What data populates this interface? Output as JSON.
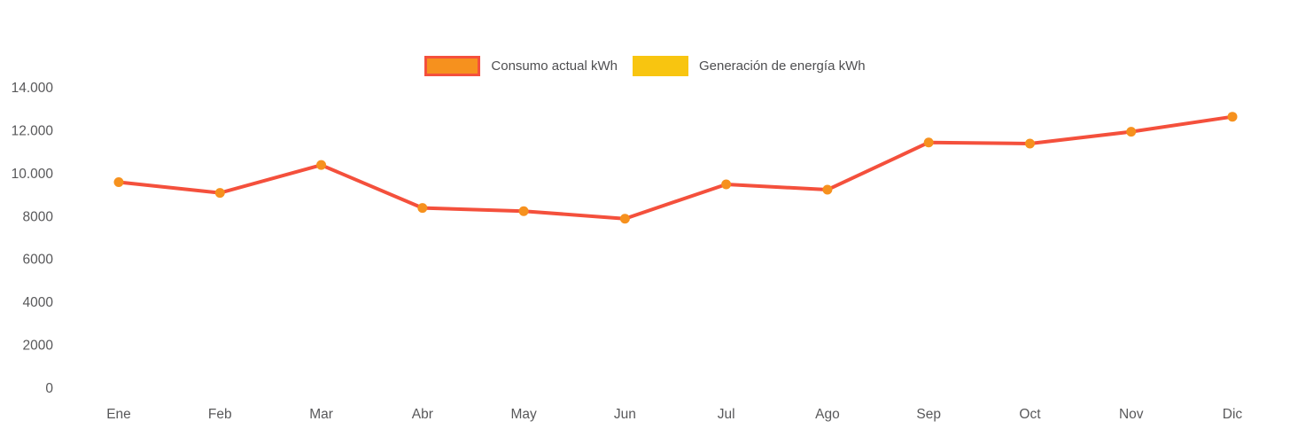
{
  "chart_data": {
    "type": "line",
    "categories": [
      "Ene",
      "Feb",
      "Mar",
      "Abr",
      "May",
      "Jun",
      "Jul",
      "Ago",
      "Sep",
      "Oct",
      "Nov",
      "Dic"
    ],
    "series": [
      {
        "name": "Consumo actual kWh",
        "values": [
          9600,
          9100,
          10400,
          8400,
          8250,
          7900,
          9500,
          9250,
          11450,
          11400,
          11950,
          12650
        ],
        "line_color": "#F4503C",
        "point_color": "#F6911E",
        "visible": true
      },
      {
        "name": "Generación de energía kWh",
        "values": [],
        "color": "#F8C510",
        "visible": false
      }
    ],
    "title": "",
    "xlabel": "",
    "ylabel": "",
    "ylim": [
      0,
      14000
    ],
    "ytick_values": [
      0,
      2000,
      4000,
      6000,
      8000,
      10000,
      12000,
      14000
    ],
    "ytick_labels": [
      "0",
      "2000",
      "4000",
      "6000",
      "8000",
      "10.000",
      "12.000",
      "14.000"
    ],
    "grid": false,
    "legend_position": "top-center"
  }
}
